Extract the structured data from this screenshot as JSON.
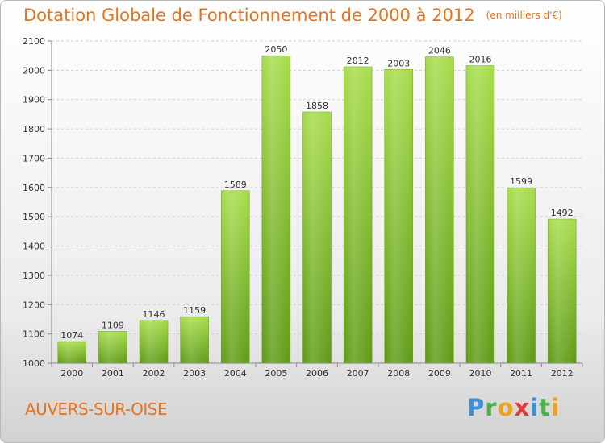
{
  "header": {
    "title": "Dotation Globale de Fonctionnement de 2000 à 2012",
    "unit": "(en milliers d'€)"
  },
  "footer": {
    "place": "AUVERS-SUR-OISE",
    "logo": "Proxiti"
  },
  "colors": {
    "bar_light": "#a6dc4a",
    "bar_dark": "#5e9a14",
    "accent": "#e8731c"
  },
  "chart_data": {
    "type": "bar",
    "title": "Dotation Globale de Fonctionnement de 2000 à 2012",
    "subtitle": "(en milliers d'€)",
    "xlabel": "",
    "ylabel": "",
    "categories": [
      "2000",
      "2001",
      "2002",
      "2003",
      "2004",
      "2005",
      "2006",
      "2007",
      "2008",
      "2009",
      "2010",
      "2011",
      "2012"
    ],
    "values": [
      1074,
      1109,
      1146,
      1159,
      1589,
      2050,
      1858,
      2012,
      2003,
      2046,
      2016,
      1599,
      1492
    ],
    "ylim": [
      1000,
      2100
    ],
    "yticks": [
      1000,
      1100,
      1200,
      1300,
      1400,
      1500,
      1600,
      1700,
      1800,
      1900,
      2000,
      2100
    ],
    "grid": true
  }
}
